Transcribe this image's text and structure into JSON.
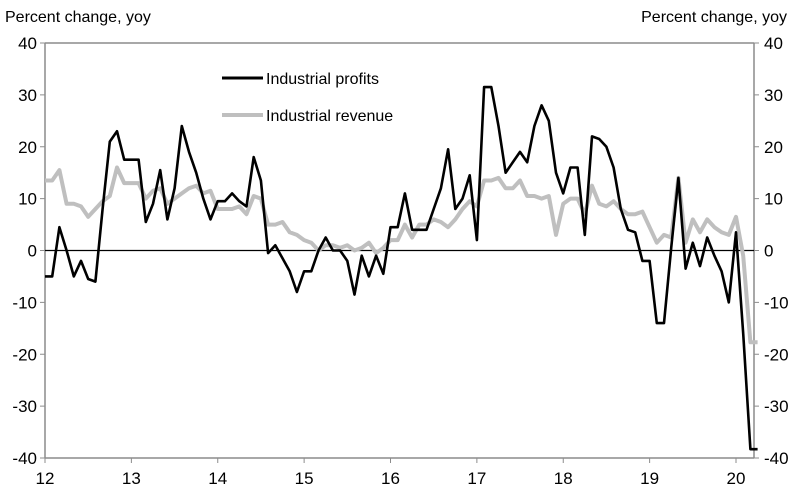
{
  "chart_data": {
    "type": "line",
    "title": "",
    "ylabel_left": "Percent change, yoy",
    "ylabel_right": "Percent change, yoy",
    "xlabel": "",
    "ylim": [
      -40,
      40
    ],
    "yticks": [
      40,
      30,
      20,
      10,
      0,
      -10,
      -20,
      -30,
      -40
    ],
    "xlim": [
      12,
      20.25
    ],
    "xticks": [
      12,
      13,
      14,
      15,
      16,
      17,
      18,
      19,
      20
    ],
    "xtick_labels": [
      "12",
      "13",
      "14",
      "15",
      "16",
      "17",
      "18",
      "19",
      "20"
    ],
    "grid": false,
    "zero_line": true,
    "legend_position": "top-left-inside",
    "x_start": 12,
    "x_step": 0.08333,
    "series": [
      {
        "name": "Industrial profits",
        "color": "#000000",
        "values": [
          -5,
          -5,
          4.5,
          0,
          -5,
          -2,
          -5.5,
          -6,
          8,
          21,
          23,
          17.5,
          17.5,
          17.5,
          5.5,
          9,
          15.5,
          6,
          12,
          24,
          19,
          15,
          10,
          6,
          9.5,
          9.5,
          11,
          9.5,
          8.5,
          18,
          13.5,
          -0.5,
          1,
          -1.5,
          -4,
          -8,
          -4,
          -4,
          0,
          2.5,
          0,
          0,
          -2,
          -8.5,
          -1,
          -5,
          -1,
          -4.5,
          4.5,
          4.5,
          11,
          4,
          4,
          4,
          8,
          12,
          19.5,
          8,
          10,
          14.5,
          2,
          31.5,
          31.5,
          24,
          15,
          17,
          19,
          17,
          24,
          28,
          25,
          15,
          11,
          16,
          16,
          3,
          22,
          21.5,
          20,
          16,
          8,
          4,
          3.5,
          -2,
          -2,
          -14,
          -14,
          0.5,
          14,
          -3.5,
          1.5,
          -3,
          2.5,
          -1,
          -4,
          -10,
          3.5,
          -16,
          -38.3,
          -38.3
        ]
      },
      {
        "name": "Industrial revenue",
        "color": "#bfbfbf",
        "values": [
          13.5,
          13.5,
          15.5,
          9,
          9,
          8.5,
          6.5,
          8,
          9.5,
          10.5,
          16,
          13,
          13,
          13,
          10,
          11.5,
          12,
          9,
          10,
          11,
          12,
          12.5,
          11,
          11.5,
          8,
          8,
          8,
          8.5,
          7,
          10.5,
          10,
          5,
          5,
          5.5,
          3.5,
          3,
          2,
          1.5,
          0,
          1,
          1,
          0.5,
          1,
          0,
          0.5,
          1.5,
          -0.5,
          0.5,
          2,
          2,
          5,
          2.5,
          5,
          5,
          6,
          5.5,
          4.5,
          6,
          8,
          9.5,
          8.5,
          13.5,
          13.5,
          14,
          12,
          12,
          13.5,
          10.5,
          10.5,
          10,
          10.5,
          3,
          9,
          10,
          10,
          7,
          12.5,
          9,
          8.5,
          9.5,
          8,
          7,
          7,
          7.5,
          4.5,
          1.5,
          3,
          2.5,
          14,
          1.5,
          6,
          3.5,
          6,
          4.5,
          3.5,
          3,
          6.5,
          -1,
          -17.7,
          -17.7
        ]
      }
    ]
  }
}
